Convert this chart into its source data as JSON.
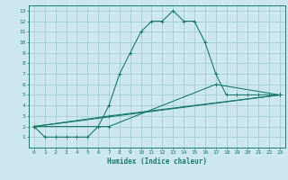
{
  "xlabel": "Humidex (Indice chaleur)",
  "bg_color": "#cce8ed",
  "grid_color": "#a0c8d0",
  "line_color": "#1a7a6e",
  "xlim": [
    -0.5,
    23.5
  ],
  "ylim": [
    0,
    13.5
  ],
  "xticks": [
    0,
    1,
    2,
    3,
    4,
    5,
    6,
    7,
    8,
    9,
    10,
    11,
    12,
    13,
    14,
    15,
    16,
    17,
    18,
    19,
    20,
    21,
    22,
    23
  ],
  "yticks": [
    1,
    2,
    3,
    4,
    5,
    6,
    7,
    8,
    9,
    10,
    11,
    12,
    13
  ],
  "series": [
    {
      "x": [
        0,
        1,
        2,
        3,
        4,
        5,
        6,
        7,
        8,
        9,
        10,
        11,
        12,
        13,
        14,
        15,
        16,
        17,
        18,
        19,
        20,
        21,
        22,
        23
      ],
      "y": [
        2,
        1,
        1,
        1,
        1,
        1,
        2,
        4,
        7,
        9,
        11,
        12,
        12,
        13,
        12,
        12,
        10,
        7,
        5,
        5,
        5,
        5,
        5,
        5
      ]
    },
    {
      "x": [
        0,
        23
      ],
      "y": [
        2,
        5
      ]
    },
    {
      "x": [
        0,
        7,
        23
      ],
      "y": [
        2,
        3,
        5
      ]
    },
    {
      "x": [
        0,
        7,
        17,
        23
      ],
      "y": [
        2,
        2,
        6,
        5
      ]
    }
  ]
}
